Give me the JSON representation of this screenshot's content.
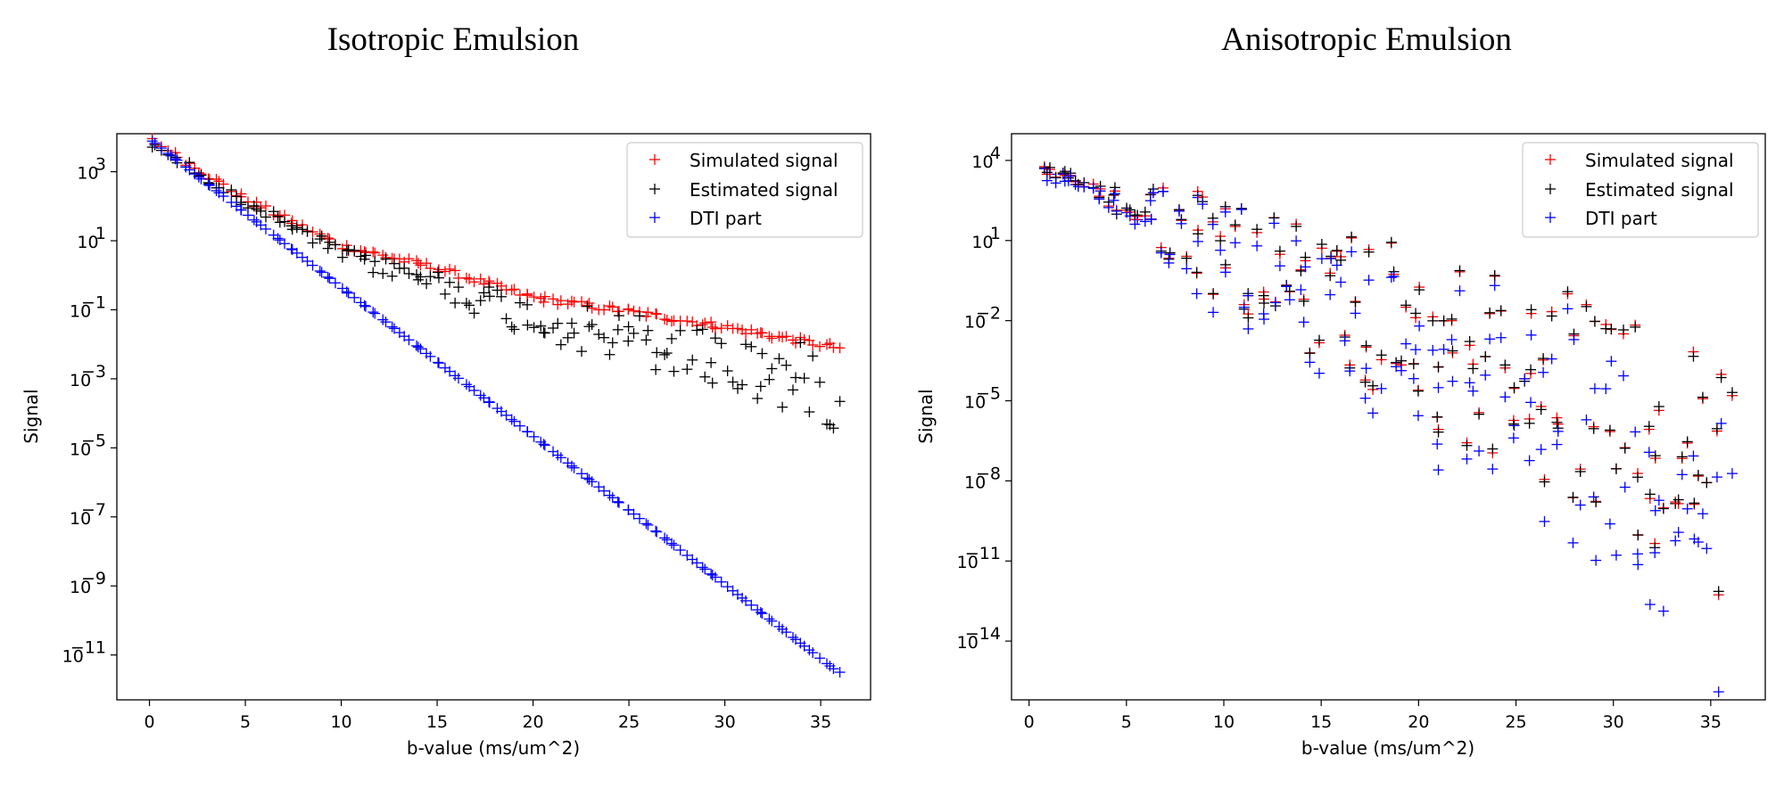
{
  "chart_data": [
    {
      "type": "scatter",
      "title": "Isotropic Emulsion",
      "xlabel": "b-value (ms/um^2)",
      "ylabel": "Signal",
      "yscale": "log",
      "xlim": [
        -1.7,
        37.6
      ],
      "ylim_log10": [
        -12.3,
        4.1
      ],
      "xticks": [
        0,
        5,
        10,
        15,
        20,
        25,
        30,
        35
      ],
      "yticks_exp": [
        3,
        1,
        -1,
        -3,
        -5,
        -7,
        -9,
        -11
      ],
      "ytick_base": "10",
      "legend_position": "top-right",
      "marker": "+",
      "series": [
        {
          "name": "Simulated signal",
          "color": "#ff0000",
          "model": "isotropic_sim",
          "x_start": 0.1,
          "x_end": 35.9
        },
        {
          "name": "Estimated signal",
          "color": "#000000",
          "model": "isotropic_est",
          "x_start": 0.1,
          "x_end": 35.9
        },
        {
          "name": "DTI part",
          "color": "#0000ff",
          "model": "isotropic_dti",
          "x_start": 0.1,
          "x_end": 35.9
        }
      ],
      "curve_log10": {
        "sim": [
          [
            0,
            3.95
          ],
          [
            5,
            2.2
          ],
          [
            10,
            0.85
          ],
          [
            15,
            0.2
          ],
          [
            20,
            -0.65
          ],
          [
            25,
            -1.05
          ],
          [
            30,
            -1.5
          ],
          [
            35.9,
            -2.1
          ]
        ],
        "dti": [
          [
            0,
            3.95
          ],
          [
            35.9,
            -11.5
          ]
        ]
      }
    },
    {
      "type": "scatter",
      "title": "Anisotropic Emulsion",
      "xlabel": "b-value (ms/um^2)",
      "ylabel": "Signal",
      "yscale": "log",
      "xlim": [
        -0.9,
        37.8
      ],
      "ylim_log10": [
        -16.2,
        5.0
      ],
      "xticks": [
        0,
        5,
        10,
        15,
        20,
        25,
        30,
        35
      ],
      "yticks_exp": [
        4,
        1,
        -2,
        -5,
        -8,
        -11,
        -14
      ],
      "ytick_base": "10",
      "legend_position": "top-right",
      "marker": "+",
      "series": [
        {
          "name": "Simulated signal",
          "color": "#ff0000",
          "model": "aniso_sim",
          "x_start": 0.6,
          "x_end": 35.9
        },
        {
          "name": "Estimated signal",
          "color": "#000000",
          "model": "aniso_est",
          "x_start": 0.6,
          "x_end": 35.9
        },
        {
          "name": "DTI part",
          "color": "#0000ff",
          "model": "aniso_dti",
          "x_start": 0.6,
          "x_end": 35.9
        }
      ]
    }
  ]
}
